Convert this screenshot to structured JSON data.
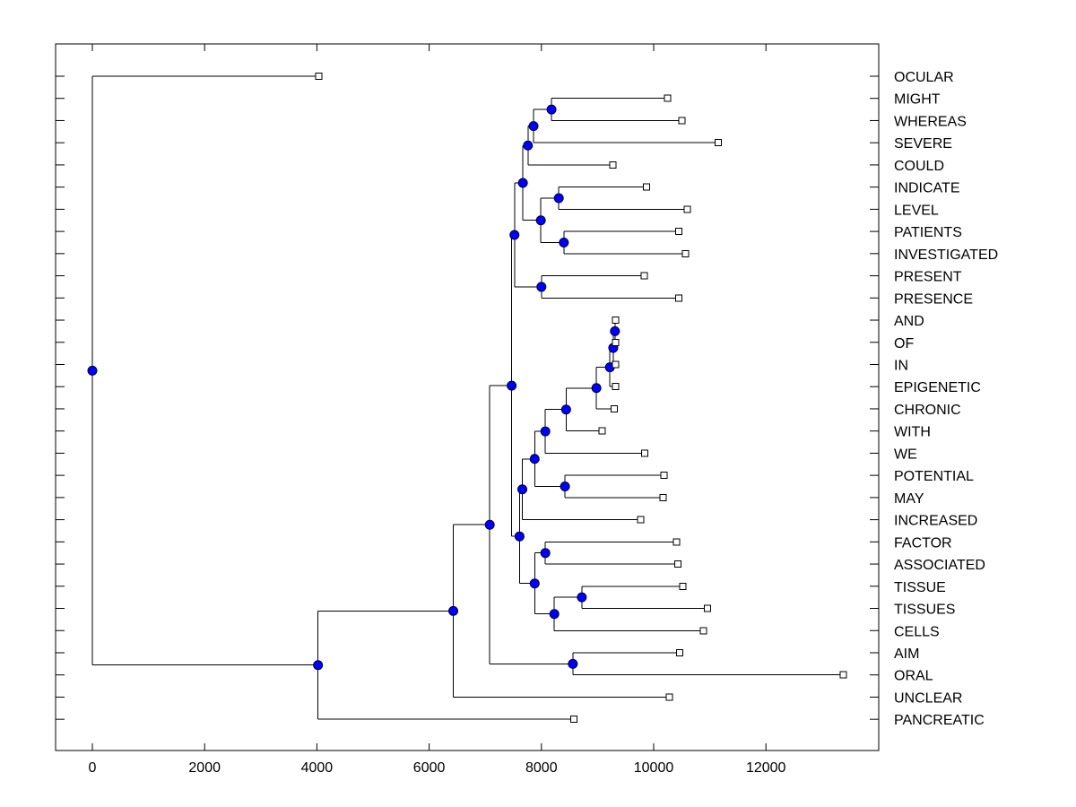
{
  "chart_data": {
    "type": "dendrogram",
    "title": "",
    "xlabel": "",
    "ylabel": "",
    "xlim": [
      -650,
      14000
    ],
    "x_ticks": [
      0,
      2000,
      4000,
      6000,
      8000,
      10000,
      12000
    ],
    "x_tick_labels": [
      "0",
      "2000",
      "4000",
      "6000",
      "8000",
      "10000",
      "12000"
    ],
    "leaves": [
      "OCULAR",
      "MIGHT",
      "WHEREAS",
      "SEVERE",
      "COULD",
      "INDICATE",
      "LEVEL",
      "PATIENTS",
      "INVESTIGATED",
      "PRESENT",
      "PRESENCE",
      "AND",
      "OF",
      "IN",
      "EPIGENETIC",
      "CHRONIC",
      "WITH",
      "WE",
      "POTENTIAL",
      "MAY",
      "INCREASED",
      "FACTOR",
      "ASSOCIATED",
      "TISSUE",
      "TISSUES",
      "CELLS",
      "AIM",
      "ORAL",
      "UNCLEAR",
      "PANCREATIC"
    ],
    "leaf_values": [
      4030,
      10250,
      10500,
      11150,
      9270,
      9870,
      10600,
      10450,
      10570,
      9830,
      10450,
      9320,
      9320,
      9320,
      9320,
      9300,
      9080,
      9840,
      10180,
      10170,
      9770,
      10410,
      10430,
      10520,
      10960,
      10890,
      10460,
      13380,
      10280,
      8580
    ],
    "merges": [
      {
        "id": "n1",
        "value": 0,
        "children": [
          "OCULAR",
          "n2"
        ]
      },
      {
        "id": "n2",
        "value": 4020,
        "children": [
          "n3",
          "PANCREATIC"
        ]
      },
      {
        "id": "n3",
        "value": 6430,
        "children": [
          "n4",
          "UNCLEAR"
        ]
      },
      {
        "id": "n4",
        "value": 7080,
        "children": [
          "n5",
          "n6"
        ]
      },
      {
        "id": "n6",
        "value": 8560,
        "children": [
          "AIM",
          "ORAL"
        ]
      },
      {
        "id": "n5",
        "value": 7470,
        "children": [
          "n7",
          "n8"
        ]
      },
      {
        "id": "n7",
        "value": 7520,
        "children": [
          "n9",
          "n10"
        ]
      },
      {
        "id": "n9",
        "value": 7670,
        "children": [
          "n11",
          "n12"
        ]
      },
      {
        "id": "n11",
        "value": 7760,
        "children": [
          "n13",
          "COULD"
        ]
      },
      {
        "id": "n13",
        "value": 7860,
        "children": [
          "n14",
          "SEVERE"
        ]
      },
      {
        "id": "n14",
        "value": 8180,
        "children": [
          "MIGHT",
          "WHEREAS"
        ]
      },
      {
        "id": "n12",
        "value": 7990,
        "children": [
          "n15",
          "n16"
        ]
      },
      {
        "id": "n15",
        "value": 8310,
        "children": [
          "INDICATE",
          "LEVEL"
        ]
      },
      {
        "id": "n16",
        "value": 8400,
        "children": [
          "PATIENTS",
          "INVESTIGATED"
        ]
      },
      {
        "id": "n10",
        "value": 8000,
        "children": [
          "PRESENT",
          "PRESENCE"
        ]
      },
      {
        "id": "n8",
        "value": 7610,
        "children": [
          "n17",
          "n18"
        ]
      },
      {
        "id": "n17",
        "value": 7660,
        "children": [
          "n19",
          "INCREASED"
        ]
      },
      {
        "id": "n19",
        "value": 7880,
        "children": [
          "n20",
          "n21"
        ]
      },
      {
        "id": "n20",
        "value": 8070,
        "children": [
          "n22",
          "WE"
        ]
      },
      {
        "id": "n22",
        "value": 8440,
        "children": [
          "n23",
          "WITH"
        ]
      },
      {
        "id": "n23",
        "value": 8980,
        "children": [
          "n24",
          "CHRONIC"
        ]
      },
      {
        "id": "n24",
        "value": 9220,
        "children": [
          "n25",
          "EPIGENETIC"
        ]
      },
      {
        "id": "n25",
        "value": 9280,
        "children": [
          "n26",
          "IN"
        ]
      },
      {
        "id": "n26",
        "value": 9310,
        "children": [
          "AND",
          "OF"
        ]
      },
      {
        "id": "n21",
        "value": 8420,
        "children": [
          "POTENTIAL",
          "MAY"
        ]
      },
      {
        "id": "n18",
        "value": 7880,
        "children": [
          "n27",
          "n28"
        ]
      },
      {
        "id": "n27",
        "value": 8070,
        "children": [
          "FACTOR",
          "ASSOCIATED"
        ]
      },
      {
        "id": "n28",
        "value": 8230,
        "children": [
          "n29",
          "CELLS"
        ]
      },
      {
        "id": "n29",
        "value": 8720,
        "children": [
          "TISSUE",
          "TISSUES"
        ]
      }
    ],
    "colors": {
      "node": "#0000ff",
      "leaf": "#ffffff",
      "line": "#000000"
    },
    "grid": false,
    "legend": "none"
  }
}
